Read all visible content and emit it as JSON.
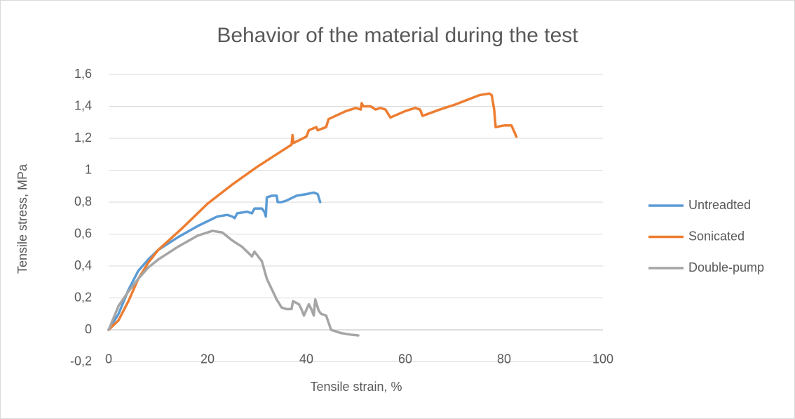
{
  "chart_data": {
    "type": "line",
    "title": "Behavior of the material during the test",
    "xlabel": "Tensile strain, %",
    "ylabel": "Tensile stress, MPa",
    "xlim": [
      0,
      100
    ],
    "xticks": [
      0,
      20,
      40,
      60,
      80,
      100
    ],
    "ylim": [
      -0.2,
      1.6
    ],
    "yticks": [
      {
        "value": -0.2,
        "label": "-0,2"
      },
      0,
      {
        "value": 0.2,
        "label": "0,2"
      },
      {
        "value": 0.4,
        "label": "0,4"
      },
      {
        "value": 0.6,
        "label": "0,6"
      },
      {
        "value": 0.8,
        "label": "0,8"
      },
      1,
      {
        "value": 1.2,
        "label": "1,2"
      },
      {
        "value": 1.4,
        "label": "1,4"
      },
      {
        "value": 1.6,
        "label": "1,6"
      }
    ],
    "grid": true,
    "legend": "right",
    "series": [
      {
        "name": "Untreadted",
        "color": "#5b9bd5",
        "x": [
          0,
          2,
          4,
          6,
          8,
          10,
          14,
          18,
          22,
          24,
          25,
          25.5,
          26,
          28,
          29,
          29.5,
          31,
          31.5,
          31.8,
          32,
          33,
          34,
          34.2,
          35,
          36,
          38,
          40,
          41.5,
          42.3,
          42.8
        ],
        "values": [
          0,
          0.1,
          0.25,
          0.37,
          0.44,
          0.5,
          0.58,
          0.65,
          0.71,
          0.72,
          0.71,
          0.7,
          0.73,
          0.74,
          0.73,
          0.76,
          0.76,
          0.74,
          0.71,
          0.83,
          0.84,
          0.84,
          0.8,
          0.8,
          0.81,
          0.84,
          0.85,
          0.86,
          0.85,
          0.8
        ]
      },
      {
        "name": "Sonicated",
        "color": "#ed7d31",
        "x": [
          0,
          2,
          4,
          6,
          8,
          10,
          15,
          20,
          25,
          30,
          35,
          37,
          37.2,
          37.4,
          40,
          40.5,
          42,
          42.3,
          44,
          44.5,
          48,
          50,
          51,
          51.2,
          51.5,
          53,
          54,
          55,
          56,
          57,
          60,
          62,
          63,
          63.5,
          67,
          70,
          75,
          77,
          77.5,
          78,
          78.3,
          80,
          81.5,
          82.5
        ],
        "values": [
          0,
          0.06,
          0.18,
          0.32,
          0.42,
          0.5,
          0.64,
          0.79,
          0.91,
          1.02,
          1.12,
          1.16,
          1.22,
          1.17,
          1.21,
          1.25,
          1.27,
          1.25,
          1.27,
          1.32,
          1.37,
          1.39,
          1.38,
          1.42,
          1.4,
          1.4,
          1.38,
          1.39,
          1.38,
          1.33,
          1.37,
          1.39,
          1.38,
          1.34,
          1.38,
          1.41,
          1.47,
          1.48,
          1.47,
          1.38,
          1.27,
          1.28,
          1.28,
          1.21
        ]
      },
      {
        "name": "Double-pump",
        "color": "#a5a5a5",
        "x": [
          0,
          2,
          4,
          6,
          8,
          10,
          14,
          18,
          21,
          23,
          25,
          27,
          29,
          29.5,
          31,
          32,
          34,
          35,
          36,
          37,
          37.3,
          38.5,
          39,
          39.5,
          40.5,
          41,
          41.5,
          41.8,
          42.5,
          43,
          44,
          45,
          47,
          49,
          50.5
        ],
        "values": [
          0,
          0.15,
          0.24,
          0.32,
          0.39,
          0.44,
          0.52,
          0.59,
          0.62,
          0.61,
          0.56,
          0.52,
          0.46,
          0.49,
          0.43,
          0.32,
          0.19,
          0.14,
          0.13,
          0.13,
          0.18,
          0.16,
          0.13,
          0.09,
          0.16,
          0.13,
          0.09,
          0.19,
          0.12,
          0.1,
          0.09,
          0,
          -0.02,
          -0.03,
          -0.035
        ]
      }
    ]
  }
}
